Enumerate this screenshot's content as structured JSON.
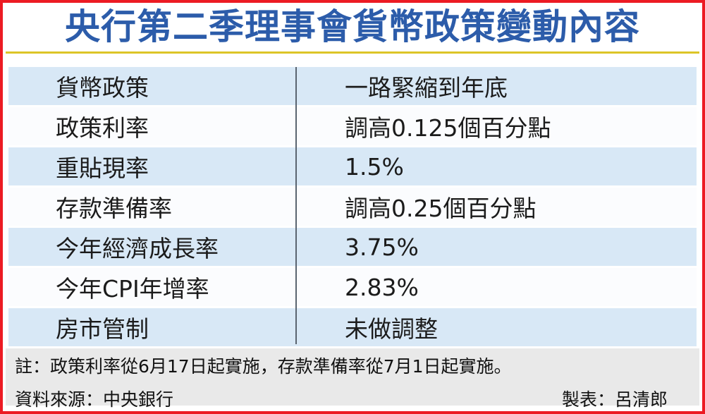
{
  "title": "央行第二季理事會貨幣政策變動內容",
  "chart_data": {
    "type": "table",
    "title": "央行第二季理事會貨幣政策變動內容",
    "rows": [
      {
        "label": "貨幣政策",
        "value": "一路緊縮到年底"
      },
      {
        "label": "政策利率",
        "value": "調高0.125個百分點"
      },
      {
        "label": "重貼現率",
        "value": "1.5%"
      },
      {
        "label": "存款準備率",
        "value": "調高0.25個百分點"
      },
      {
        "label": "今年經濟成長率",
        "value": "3.75%"
      },
      {
        "label": "今年CPI年增率",
        "value": "2.83%"
      },
      {
        "label": "房市管制",
        "value": "未做調整"
      }
    ],
    "note": "註：政策利率從6月17日起實施，存款準備率從7月1日起實施。",
    "source": "資料來源：中央銀行",
    "credit": "製表：呂清郎",
    "layout": {
      "columns": 2,
      "grid": "off",
      "row_striping": "blue/white"
    }
  },
  "colors": {
    "border_red": "#ec1b23",
    "title_blue": "#2c5caa",
    "rule_yellow": "#dcc527",
    "row_blue": "#d8e8f6",
    "row_white": "#fbfcfe",
    "divider_gray": "#5a6470",
    "footer_gray": "#e9e9e9"
  }
}
